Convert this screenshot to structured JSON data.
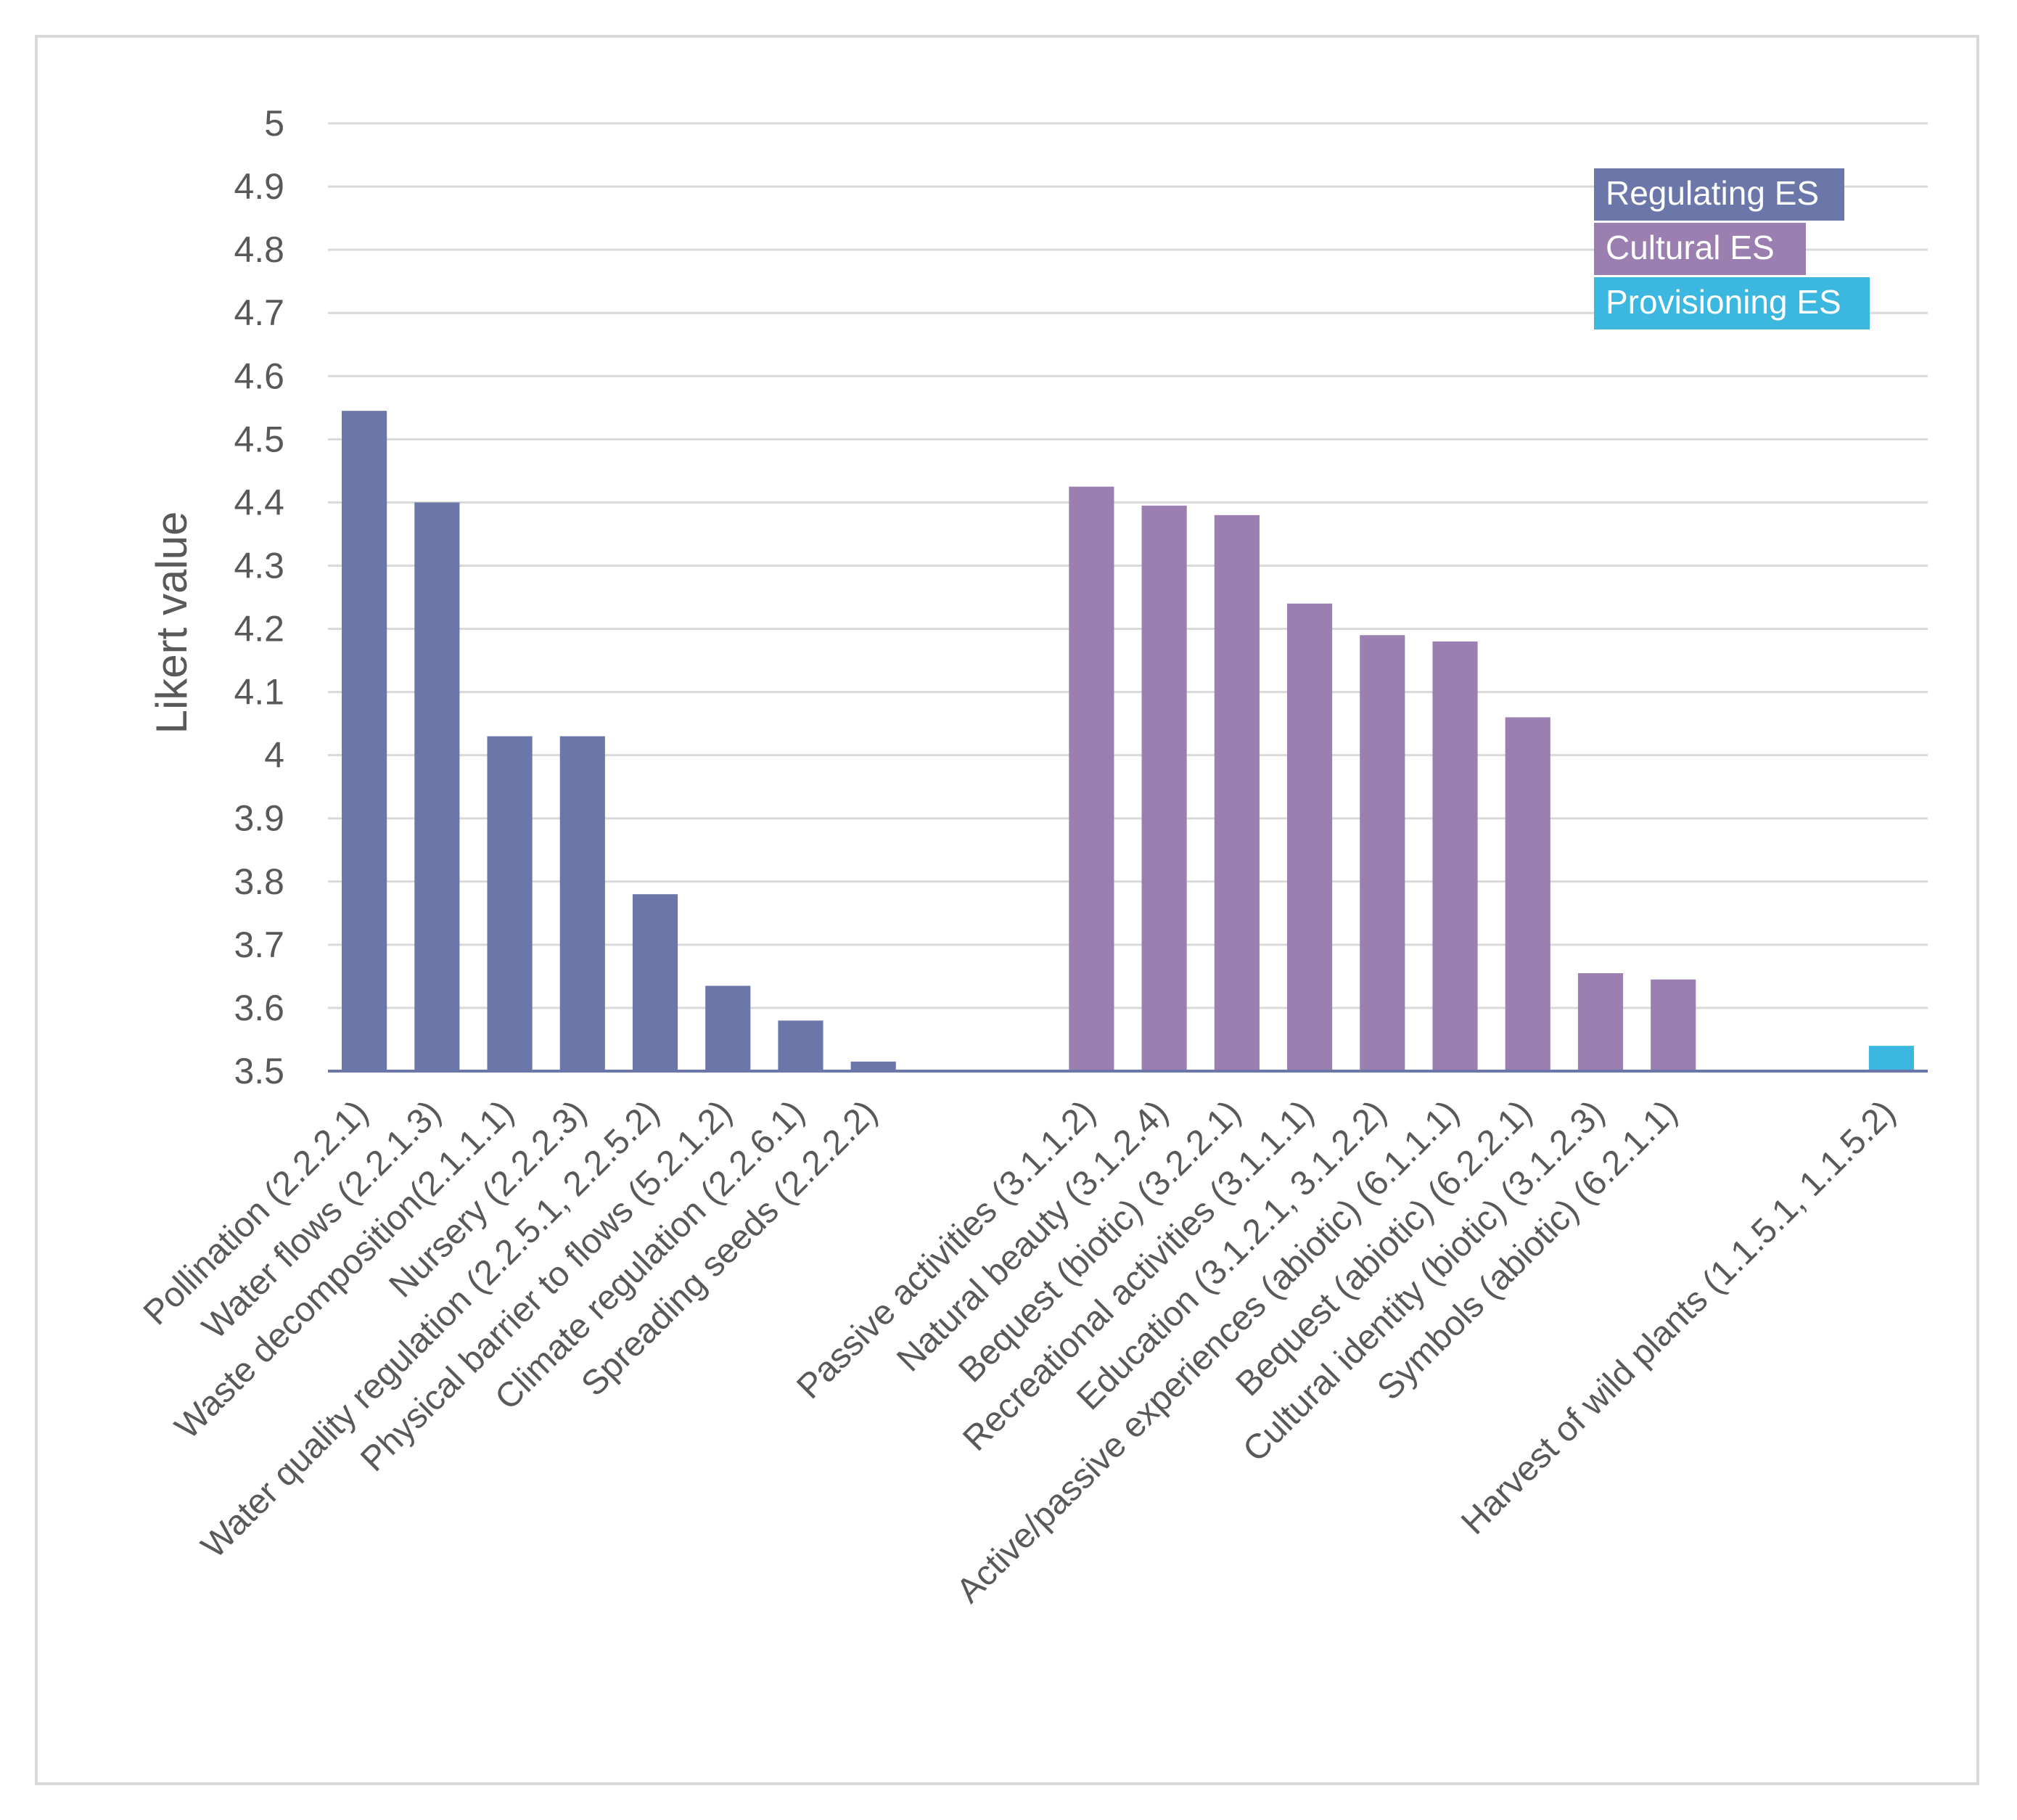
{
  "chart_data": {
    "type": "bar",
    "title": "",
    "xlabel": "",
    "ylabel": "Likert value",
    "ylim": [
      3.5,
      5
    ],
    "yticks": [
      "3.5",
      "3.6",
      "3.7",
      "3.8",
      "3.9",
      "4",
      "4.1",
      "4.2",
      "4.3",
      "4.4",
      "4.5",
      "4.6",
      "4.7",
      "4.8",
      "4.9",
      "5"
    ],
    "grid": true,
    "legend_position": "top-right",
    "series": [
      {
        "name": "Regulating ES",
        "color": "#6b77a8"
      },
      {
        "name": "Cultural ES",
        "color": "#9b7fb0"
      },
      {
        "name": "Provisioning ES",
        "color": "#3cb8e0"
      }
    ],
    "categories": [
      "Pollination (2.2.2.1)",
      "Water flows (2.2.1.3)",
      "Waste decomposition(2.1.1.1)",
      "Nursery (2.2.2.3)",
      "Water quality regulation (2.2.5.1, 2.2.5.2)",
      "Physical barrier to flows (5.2.1.2)",
      "Climate regulation (2.2.6.1)",
      "Spreading seeds (2.2.2.2)",
      "",
      "",
      "Passive activities  (3.1.1.2)",
      "Natural beauty (3.1.2.4)",
      "Bequest (biotic) (3.2.2.1)",
      "Recreational activities (3.1.1.1)",
      "Education (3.1.2.1, 3.1.2.2)",
      "Active/passive experiences (abiotic) (6.1.1.1)",
      "Bequest (abiotic) (6.2.2.1)",
      "Cultural identity (biotic) (3.1.2.3)",
      "Symbols (abiotic) (6.2.1.1)",
      "",
      "",
      "Harvest of wild plants (1.1.5.1, 1.1.5.2)"
    ],
    "values": [
      4.545,
      4.4,
      4.03,
      4.03,
      3.78,
      3.635,
      3.58,
      3.515,
      null,
      null,
      4.425,
      4.395,
      4.38,
      4.24,
      4.19,
      4.18,
      4.06,
      3.655,
      3.645,
      null,
      null,
      3.54
    ],
    "groups": [
      0,
      0,
      0,
      0,
      0,
      0,
      0,
      0,
      -1,
      -1,
      1,
      1,
      1,
      1,
      1,
      1,
      1,
      1,
      1,
      -1,
      -1,
      2
    ]
  }
}
